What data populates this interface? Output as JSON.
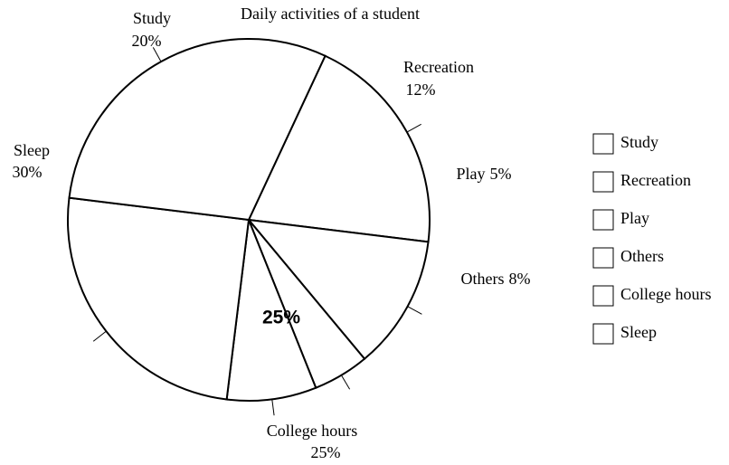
{
  "chart_data": {
    "type": "pie",
    "title": "Daily activities of a student",
    "categories": [
      "Study",
      "Recreation",
      "Play",
      "Others",
      "College hours",
      "Sleep"
    ],
    "values": [
      20,
      12,
      5,
      8,
      25,
      30
    ],
    "value_labels": [
      "20%",
      "12%",
      "5%",
      "8%",
      "25%",
      "30%"
    ],
    "color": "#ffffff",
    "legend": "right"
  }
}
